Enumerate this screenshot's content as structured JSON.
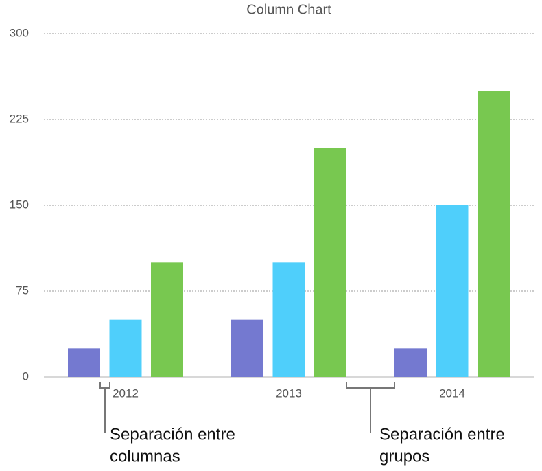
{
  "chart_data": {
    "type": "bar",
    "title": "Column Chart",
    "categories": [
      "2012",
      "2013",
      "2014"
    ],
    "series": [
      {
        "color": "#7479d0",
        "values": [
          25,
          50,
          25
        ]
      },
      {
        "color": "#4fcffb",
        "values": [
          50,
          100,
          150
        ]
      },
      {
        "color": "#78c850",
        "values": [
          100,
          200,
          250
        ]
      }
    ],
    "ylim": [
      0,
      300
    ],
    "yticks": [
      0,
      75,
      150,
      225,
      300
    ],
    "grid": true,
    "annotations": [
      [
        "Separación entre",
        "columnas"
      ],
      [
        "Separación entre",
        "grupos"
      ]
    ]
  }
}
